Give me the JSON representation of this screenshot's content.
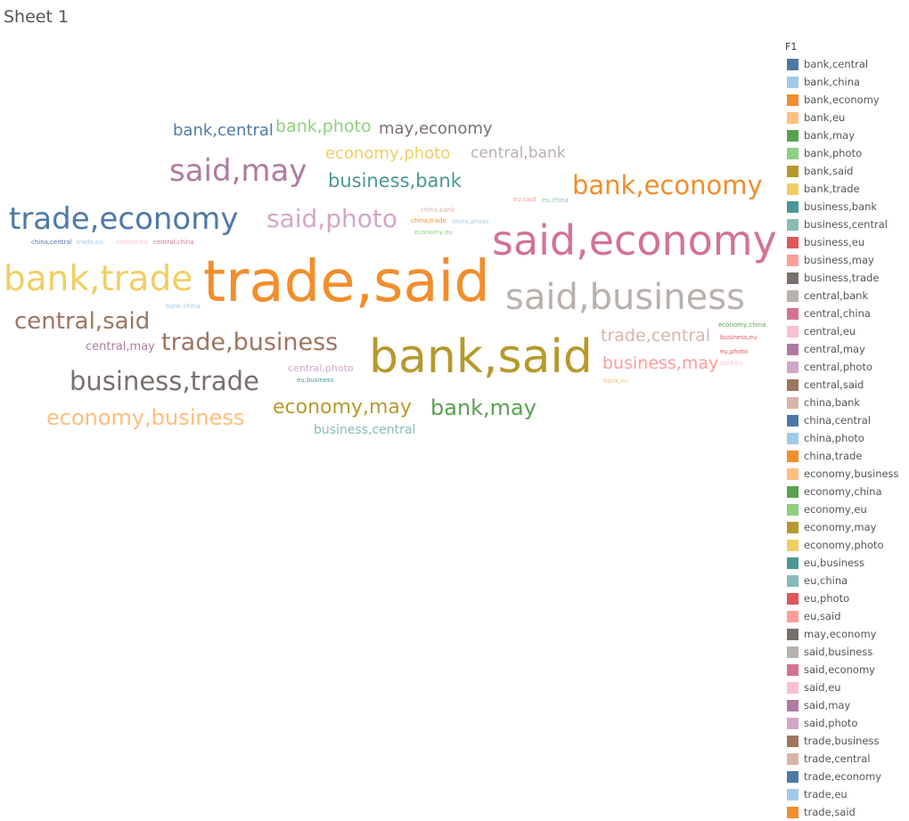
{
  "sheet": {
    "title": "Sheet 1"
  },
  "chart_data": {
    "type": "wordcloud",
    "legend_title": "F1",
    "legend_placement": "right",
    "words": [
      {
        "text": "trade,said",
        "size": 64,
        "color": "#F28E2B"
      },
      {
        "text": "bank,said",
        "size": 52,
        "color": "#B6992D"
      },
      {
        "text": "said,economy",
        "size": 46,
        "color": "#D37295"
      },
      {
        "text": "said,business",
        "size": 40,
        "color": "#BAB0AC"
      },
      {
        "text": "bank,trade",
        "size": 39,
        "color": "#F1CE63"
      },
      {
        "text": "trade,economy",
        "size": 34,
        "color": "#4E79A7"
      },
      {
        "text": "said,may",
        "size": 34,
        "color": "#B07AA1"
      },
      {
        "text": "bank,economy",
        "size": 29,
        "color": "#F28E2B"
      },
      {
        "text": "business,trade",
        "size": 29,
        "color": "#79706E"
      },
      {
        "text": "said,photo",
        "size": 28,
        "color": "#D4A6C8"
      },
      {
        "text": "trade,business",
        "size": 27,
        "color": "#9D7660"
      },
      {
        "text": "central,said",
        "size": 26,
        "color": "#9D7660"
      },
      {
        "text": "economy,business",
        "size": 24,
        "color": "#FFBE7D"
      },
      {
        "text": "economy,may",
        "size": 22,
        "color": "#B6992D"
      },
      {
        "text": "bank,may",
        "size": 24,
        "color": "#59A14F"
      },
      {
        "text": "business,bank",
        "size": 21,
        "color": "#499894"
      },
      {
        "text": "trade,central",
        "size": 19,
        "color": "#D7B5A6"
      },
      {
        "text": "business,may",
        "size": 19,
        "color": "#FF9D9A"
      },
      {
        "text": "bank,photo",
        "size": 19,
        "color": "#8CD17D"
      },
      {
        "text": "may,economy",
        "size": 18,
        "color": "#79706E"
      },
      {
        "text": "bank,central",
        "size": 18,
        "color": "#4E79A7"
      },
      {
        "text": "economy,photo",
        "size": 18,
        "color": "#F1CE63"
      },
      {
        "text": "central,bank",
        "size": 17,
        "color": "#BAB0AC"
      },
      {
        "text": "central,may",
        "size": 13,
        "color": "#B07AA1"
      },
      {
        "text": "business,central",
        "size": 14,
        "color": "#86BCB6"
      },
      {
        "text": "central,photo",
        "size": 11,
        "color": "#D4A6C8"
      },
      {
        "text": "eu,business",
        "size": 7,
        "color": "#499894"
      },
      {
        "text": "china,central",
        "size": 7,
        "color": "#4E79A7"
      },
      {
        "text": "trade,eu",
        "size": 7,
        "color": "#A0CBE8"
      },
      {
        "text": "central,eu",
        "size": 7,
        "color": "#FABFD2"
      },
      {
        "text": "central,china",
        "size": 7,
        "color": "#D37295"
      },
      {
        "text": "bank,china",
        "size": 7,
        "color": "#A0CBE8"
      },
      {
        "text": "china,bank",
        "size": 7,
        "color": "#D7B5A6"
      },
      {
        "text": "china,trade",
        "size": 7,
        "color": "#F28E2B"
      },
      {
        "text": "china,photo",
        "size": 7,
        "color": "#A0CBE8"
      },
      {
        "text": "economy,eu",
        "size": 7,
        "color": "#8CD17D"
      },
      {
        "text": "eu,said",
        "size": 7,
        "color": "#FF9D9A"
      },
      {
        "text": "eu,china",
        "size": 7,
        "color": "#86BCB6"
      },
      {
        "text": "economy,china",
        "size": 7,
        "color": "#59A14F"
      },
      {
        "text": "business,eu",
        "size": 7,
        "color": "#E15759"
      },
      {
        "text": "eu,photo",
        "size": 7,
        "color": "#E15759"
      },
      {
        "text": "said,eu",
        "size": 7,
        "color": "#FABFD2"
      },
      {
        "text": "bank,eu",
        "size": 7,
        "color": "#FFBE7D"
      }
    ],
    "legend": [
      {
        "label": "bank,central",
        "color": "#4E79A7"
      },
      {
        "label": "bank,china",
        "color": "#A0CBE8"
      },
      {
        "label": "bank,economy",
        "color": "#F28E2B"
      },
      {
        "label": "bank,eu",
        "color": "#FFBE7D"
      },
      {
        "label": "bank,may",
        "color": "#59A14F"
      },
      {
        "label": "bank,photo",
        "color": "#8CD17D"
      },
      {
        "label": "bank,said",
        "color": "#B6992D"
      },
      {
        "label": "bank,trade",
        "color": "#F1CE63"
      },
      {
        "label": "business,bank",
        "color": "#499894"
      },
      {
        "label": "business,central",
        "color": "#86BCB6"
      },
      {
        "label": "business,eu",
        "color": "#E15759"
      },
      {
        "label": "business,may",
        "color": "#FF9D9A"
      },
      {
        "label": "business,trade",
        "color": "#79706E"
      },
      {
        "label": "central,bank",
        "color": "#BAB0AC"
      },
      {
        "label": "central,china",
        "color": "#D37295"
      },
      {
        "label": "central,eu",
        "color": "#FABFD2"
      },
      {
        "label": "central,may",
        "color": "#B07AA1"
      },
      {
        "label": "central,photo",
        "color": "#D4A6C8"
      },
      {
        "label": "central,said",
        "color": "#9D7660"
      },
      {
        "label": "china,bank",
        "color": "#D7B5A6"
      },
      {
        "label": "china,central",
        "color": "#4E79A7"
      },
      {
        "label": "china,photo",
        "color": "#A0CBE8"
      },
      {
        "label": "china,trade",
        "color": "#F28E2B"
      },
      {
        "label": "economy,business",
        "color": "#FFBE7D"
      },
      {
        "label": "economy,china",
        "color": "#59A14F"
      },
      {
        "label": "economy,eu",
        "color": "#8CD17D"
      },
      {
        "label": "economy,may",
        "color": "#B6992D"
      },
      {
        "label": "economy,photo",
        "color": "#F1CE63"
      },
      {
        "label": "eu,business",
        "color": "#499894"
      },
      {
        "label": "eu,china",
        "color": "#86BCB6"
      },
      {
        "label": "eu,photo",
        "color": "#E15759"
      },
      {
        "label": "eu,said",
        "color": "#FF9D9A"
      },
      {
        "label": "may,economy",
        "color": "#79706E"
      },
      {
        "label": "said,business",
        "color": "#BAB0AC"
      },
      {
        "label": "said,economy",
        "color": "#D37295"
      },
      {
        "label": "said,eu",
        "color": "#FABFD2"
      },
      {
        "label": "said,may",
        "color": "#B07AA1"
      },
      {
        "label": "said,photo",
        "color": "#D4A6C8"
      },
      {
        "label": "trade,business",
        "color": "#9D7660"
      },
      {
        "label": "trade,central",
        "color": "#D7B5A6"
      },
      {
        "label": "trade,economy",
        "color": "#4E79A7"
      },
      {
        "label": "trade,eu",
        "color": "#A0CBE8"
      },
      {
        "label": "trade,said",
        "color": "#F28E2B"
      }
    ]
  }
}
